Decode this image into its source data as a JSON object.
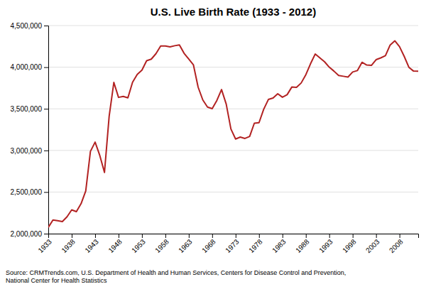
{
  "chart_data": {
    "type": "line",
    "title": "U.S. Live Birth Rate (1933 - 2012)",
    "annotations": [
      "Source: CRMTrends.com, U.S. Department of Health and Human Services, Centers for Disease Control and Prevention,\nNational Center for Health Statistics"
    ],
    "color": "#b22222",
    "x": [
      1933,
      1934,
      1935,
      1936,
      1937,
      1938,
      1939,
      1940,
      1941,
      1942,
      1943,
      1944,
      1945,
      1946,
      1947,
      1948,
      1949,
      1950,
      1951,
      1952,
      1953,
      1954,
      1955,
      1956,
      1957,
      1958,
      1959,
      1960,
      1961,
      1962,
      1963,
      1964,
      1965,
      1966,
      1967,
      1968,
      1969,
      1970,
      1971,
      1972,
      1973,
      1974,
      1975,
      1976,
      1977,
      1978,
      1979,
      1980,
      1981,
      1982,
      1983,
      1984,
      1985,
      1986,
      1987,
      1988,
      1989,
      1990,
      1991,
      1992,
      1993,
      1994,
      1995,
      1996,
      1997,
      1998,
      1999,
      2000,
      2001,
      2002,
      2003,
      2004,
      2005,
      2006,
      2007,
      2008,
      2009,
      2010,
      2011,
      2012
    ],
    "values": [
      2075000,
      2165000,
      2155000,
      2145000,
      2203000,
      2286000,
      2265000,
      2360000,
      2513000,
      2989000,
      3100000,
      2939000,
      2735000,
      3411000,
      3817000,
      3637000,
      3649000,
      3632000,
      3820000,
      3913000,
      3965000,
      4078000,
      4097000,
      4163000,
      4254000,
      4255000,
      4244000,
      4258000,
      4268000,
      4167000,
      4098000,
      4027000,
      3760000,
      3606000,
      3521000,
      3502000,
      3600000,
      3731000,
      3556000,
      3258000,
      3137000,
      3160000,
      3144000,
      3168000,
      3327000,
      3333000,
      3494000,
      3612000,
      3629000,
      3681000,
      3639000,
      3669000,
      3761000,
      3757000,
      3810000,
      3910000,
      4041000,
      4158000,
      4111000,
      4065000,
      4000000,
      3953000,
      3900000,
      3891000,
      3881000,
      3942000,
      3959000,
      4059000,
      4026000,
      4022000,
      4090000,
      4112000,
      4138000,
      4266000,
      4317000,
      4247000,
      4131000,
      3999000,
      3953000,
      3952000
    ],
    "xlim": [
      1933,
      2012
    ],
    "xticks": [
      1933,
      1938,
      1943,
      1948,
      1953,
      1958,
      1963,
      1968,
      1973,
      1978,
      1983,
      1988,
      1993,
      1998,
      2003,
      2008
    ],
    "ylim": [
      2000000,
      4500000
    ],
    "yticks": [
      {
        "value": 2000000,
        "label": "2,000,000"
      },
      {
        "value": 2500000,
        "label": "2,500,000"
      },
      {
        "value": 3000000,
        "label": "3,000,000"
      },
      {
        "value": 3500000,
        "label": "3,500,000"
      },
      {
        "value": 4000000,
        "label": "4,000,000"
      },
      {
        "value": 4500000,
        "label": "4,500,000"
      }
    ],
    "grid": true
  }
}
